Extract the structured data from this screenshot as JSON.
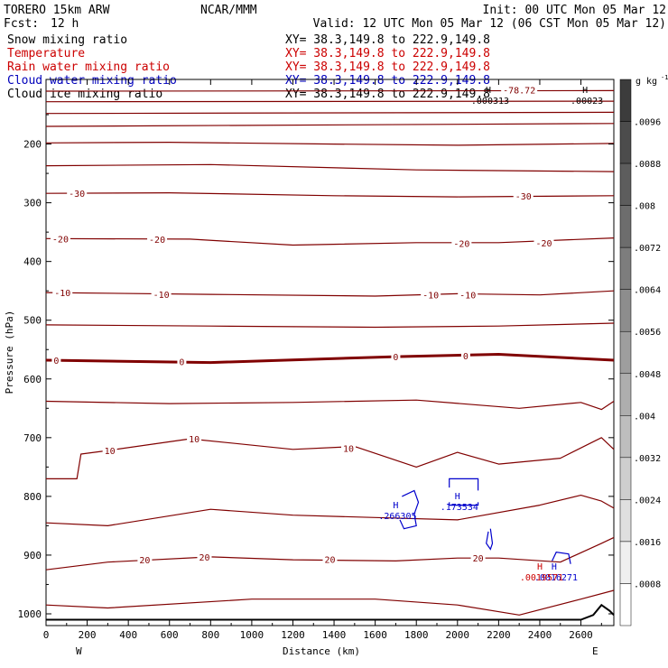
{
  "header": {
    "model": "TORERO  15km ARW",
    "org": "NCAR/MMM",
    "init": "Init: 00 UTC Mon 05 Mar 12",
    "fcst_label": "Fcst:",
    "fcst_value": "12 h",
    "valid": "Valid: 12 UTC Mon 05 Mar 12 (06 CST Mon 05 Mar 12)"
  },
  "legend": [
    {
      "name": "Snow mixing ratio",
      "color": "#000000",
      "xy": "XY=  38.3,149.8 to 222.9,149.8"
    },
    {
      "name": "Temperature",
      "color": "#cc0000",
      "xy": "XY=  38.3,149.8 to 222.9,149.8"
    },
    {
      "name": "Rain water mixing ratio",
      "color": "#cc0000",
      "xy": "XY=  38.3,149.8 to 222.9,149.8"
    },
    {
      "name": "Cloud water mixing ratio",
      "color": "#0000bb",
      "xy": "XY=  38.3,149.8 to 222.9,149.8"
    },
    {
      "name": "Cloud ice mixing ratio",
      "color": "#000000",
      "xy": "XY=  38.3,149.8 to 222.9,149.8"
    }
  ],
  "colors": {
    "temperature": "#800000",
    "cloud_water": "#0000cc",
    "rain": "#cc0000",
    "axis": "#000000"
  },
  "chart_data": {
    "type": "line",
    "xlabel": "Distance (km)",
    "ylabel": "Pressure (hPa)",
    "x_ticks": [
      "0",
      "200",
      "400",
      "600",
      "800",
      "1000",
      "1200",
      "1400",
      "1600",
      "1800",
      "2000",
      "2200",
      "2400",
      "2600"
    ],
    "y_ticks": [
      "200",
      "300",
      "400",
      "500",
      "600",
      "700",
      "800",
      "900",
      "1000"
    ],
    "xlim": [
      0,
      2760
    ],
    "ylim": [
      1020,
      90
    ],
    "y_scale": "linear",
    "left_end_label": "W",
    "right_end_label": "E",
    "temperature_contours": [
      {
        "value": -78.72,
        "points": [
          [
            0,
            110
          ],
          [
            2760,
            109
          ]
        ]
      },
      {
        "value": null,
        "points": [
          [
            0,
            128
          ],
          [
            2760,
            127
          ]
        ]
      },
      {
        "value": null,
        "points": [
          [
            0,
            148
          ],
          [
            2760,
            146
          ]
        ]
      },
      {
        "value": null,
        "points": [
          [
            0,
            170
          ],
          [
            2760,
            165
          ]
        ]
      },
      {
        "value": null,
        "points": [
          [
            0,
            198
          ],
          [
            600,
            197
          ],
          [
            1400,
            200
          ],
          [
            2000,
            202
          ],
          [
            2760,
            199
          ]
        ]
      },
      {
        "value": null,
        "points": [
          [
            0,
            237
          ],
          [
            800,
            235
          ],
          [
            1800,
            244
          ],
          [
            2760,
            247
          ]
        ]
      },
      {
        "value": -30,
        "points": [
          [
            0,
            284
          ],
          [
            600,
            283
          ],
          [
            1400,
            288
          ],
          [
            2000,
            290
          ],
          [
            2760,
            288
          ]
        ]
      },
      {
        "value": -20,
        "points": [
          [
            0,
            361
          ],
          [
            700,
            362
          ],
          [
            1200,
            372
          ],
          [
            1800,
            368
          ],
          [
            2200,
            368
          ],
          [
            2760,
            360
          ]
        ]
      },
      {
        "value": -10,
        "points": [
          [
            0,
            453
          ],
          [
            800,
            456
          ],
          [
            1600,
            459
          ],
          [
            2000,
            455
          ],
          [
            2400,
            457
          ],
          [
            2760,
            450
          ]
        ]
      },
      {
        "value": null,
        "points": [
          [
            0,
            508
          ],
          [
            800,
            510
          ],
          [
            1600,
            512
          ],
          [
            2200,
            510
          ],
          [
            2760,
            505
          ]
        ]
      },
      {
        "value": 0,
        "points": [
          [
            0,
            568
          ],
          [
            800,
            572
          ],
          [
            1700,
            562
          ],
          [
            2200,
            558
          ],
          [
            2760,
            568
          ]
        ],
        "bold": true
      },
      {
        "value": null,
        "points": [
          [
            0,
            638
          ],
          [
            600,
            642
          ],
          [
            1200,
            640
          ],
          [
            1800,
            636
          ],
          [
            2300,
            650
          ],
          [
            2600,
            640
          ],
          [
            2700,
            652
          ],
          [
            2760,
            638
          ]
        ]
      },
      {
        "value": 10,
        "points": [
          [
            0,
            770
          ],
          [
            150,
            770
          ],
          [
            170,
            728
          ],
          [
            300,
            722
          ],
          [
            700,
            702
          ],
          [
            1200,
            720
          ],
          [
            1500,
            715
          ],
          [
            1800,
            750
          ],
          [
            2000,
            725
          ],
          [
            2200,
            745
          ],
          [
            2500,
            735
          ],
          [
            2700,
            700
          ],
          [
            2760,
            720
          ]
        ]
      },
      {
        "value": null,
        "points": [
          [
            0,
            845
          ],
          [
            300,
            850
          ],
          [
            800,
            822
          ],
          [
            1200,
            832
          ],
          [
            1600,
            836
          ],
          [
            2000,
            840
          ],
          [
            2400,
            815
          ],
          [
            2600,
            798
          ],
          [
            2700,
            808
          ],
          [
            2760,
            820
          ]
        ]
      },
      {
        "value": 20,
        "points": [
          [
            0,
            925
          ],
          [
            300,
            912
          ],
          [
            800,
            903
          ],
          [
            1200,
            908
          ],
          [
            1700,
            910
          ],
          [
            2000,
            905
          ],
          [
            2200,
            905
          ],
          [
            2500,
            912
          ],
          [
            2700,
            880
          ],
          [
            2760,
            870
          ]
        ]
      },
      {
        "value": null,
        "points": [
          [
            0,
            985
          ],
          [
            300,
            990
          ],
          [
            1000,
            975
          ],
          [
            1600,
            975
          ],
          [
            2000,
            985
          ],
          [
            2300,
            1002
          ],
          [
            2600,
            975
          ],
          [
            2760,
            960
          ]
        ]
      }
    ],
    "temperature_labels": [
      {
        "value": "-78.72",
        "x": 2300,
        "p": 108
      },
      {
        "value": "-30",
        "x": 150,
        "p": 284
      },
      {
        "value": "-30",
        "x": 2320,
        "p": 288
      },
      {
        "value": "-20",
        "x": 70,
        "p": 361
      },
      {
        "value": "-20",
        "x": 540,
        "p": 362
      },
      {
        "value": "-20",
        "x": 2020,
        "p": 369
      },
      {
        "value": "-20",
        "x": 2420,
        "p": 368
      },
      {
        "value": "-10",
        "x": 80,
        "p": 453
      },
      {
        "value": "-10",
        "x": 560,
        "p": 456
      },
      {
        "value": "-10",
        "x": 1870,
        "p": 457
      },
      {
        "value": "-10",
        "x": 2050,
        "p": 457
      },
      {
        "value": "0",
        "x": 50,
        "p": 568
      },
      {
        "value": "0",
        "x": 660,
        "p": 570
      },
      {
        "value": "0",
        "x": 1700,
        "p": 562
      },
      {
        "value": "0",
        "x": 2040,
        "p": 560
      },
      {
        "value": "10",
        "x": 310,
        "p": 722
      },
      {
        "value": "10",
        "x": 720,
        "p": 702
      },
      {
        "value": "10",
        "x": 1470,
        "p": 718
      },
      {
        "value": "20",
        "x": 480,
        "p": 908
      },
      {
        "value": "20",
        "x": 770,
        "p": 903
      },
      {
        "value": "20",
        "x": 1380,
        "p": 907
      },
      {
        "value": "20",
        "x": 2100,
        "p": 905
      }
    ],
    "high_markers": [
      {
        "symbol": "H",
        "value": ".000313",
        "x": 2150,
        "p": 113,
        "series": "snow"
      },
      {
        "symbol": "H",
        "value": ".00023",
        "x": 2620,
        "p": 113,
        "series": "snow"
      },
      {
        "symbol": "H",
        "value": ".266305",
        "x": 1700,
        "p": 820,
        "series": "cloud_water"
      },
      {
        "symbol": "H",
        "value": ".173534",
        "x": 2000,
        "p": 805,
        "series": "cloud_water"
      },
      {
        "symbol": "H",
        "value": ".0016271",
        "x": 2470,
        "p": 925,
        "series": "cloud_water"
      },
      {
        "symbol": "H",
        "value": ".0019571",
        "x": 2400,
        "p": 925,
        "series": "rain"
      }
    ],
    "cloud_water_outlines": [
      {
        "points": [
          [
            1730,
            800
          ],
          [
            1790,
            790
          ],
          [
            1810,
            810
          ],
          [
            1790,
            830
          ],
          [
            1800,
            850
          ],
          [
            1740,
            855
          ],
          [
            1720,
            840
          ]
        ]
      },
      {
        "points": [
          [
            1960,
            785
          ],
          [
            1960,
            770
          ],
          [
            2100,
            770
          ],
          [
            2100,
            790
          ]
        ]
      },
      {
        "points": [
          [
            1960,
            810
          ],
          [
            1960,
            815
          ],
          [
            2100,
            815
          ],
          [
            2100,
            810
          ]
        ]
      },
      {
        "points": [
          [
            2160,
            855
          ],
          [
            2170,
            880
          ],
          [
            2160,
            890
          ],
          [
            2140,
            880
          ],
          [
            2150,
            860
          ]
        ]
      },
      {
        "points": [
          [
            2460,
            910
          ],
          [
            2480,
            895
          ],
          [
            2540,
            898
          ],
          [
            2550,
            915
          ]
        ]
      }
    ],
    "terrain": {
      "points": [
        [
          0,
          1010
        ],
        [
          2600,
          1010
        ],
        [
          2660,
          1002
        ],
        [
          2700,
          985
        ],
        [
          2740,
          995
        ],
        [
          2760,
          1002
        ]
      ]
    },
    "colorbar": {
      "unit": "g kg",
      "unit_exponent": "-1",
      "ticks": [
        ".0096",
        ".0088",
        ".008",
        ".0072",
        ".0064",
        ".0056",
        ".0048",
        ".004",
        ".0032",
        ".0024",
        ".0016",
        ".0008"
      ]
    }
  }
}
